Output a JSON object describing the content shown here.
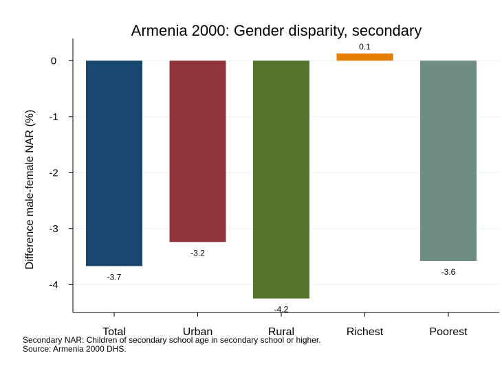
{
  "chart_data": {
    "type": "bar",
    "title": "Armenia 2000: Gender disparity, secondary",
    "xlabel": "",
    "ylabel": "Difference male-female NAR (%)",
    "categories": [
      "Total",
      "Urban",
      "Rural",
      "Richest",
      "Poorest"
    ],
    "values": [
      -3.67,
      -3.24,
      -4.25,
      0.13,
      -3.58
    ],
    "value_labels": [
      "-3.7",
      "-3.2",
      "-4.2",
      "0.1",
      "-3.6"
    ],
    "colors": [
      "#1a476f",
      "#90353b",
      "#55752f",
      "#e37e00",
      "#6e8e84"
    ],
    "ylim": [
      -4.5,
      0.25
    ],
    "yticks": [
      0,
      -1,
      -2,
      -3,
      -4
    ],
    "ytick_labels": [
      "0",
      "-1",
      "-2",
      "-3",
      "-4"
    ],
    "grid": true,
    "legend": "none"
  },
  "notes": {
    "line1": "Secondary NAR: Children of secondary school age in secondary school or higher.",
    "line2": "Source: Armenia 2000 DHS."
  }
}
